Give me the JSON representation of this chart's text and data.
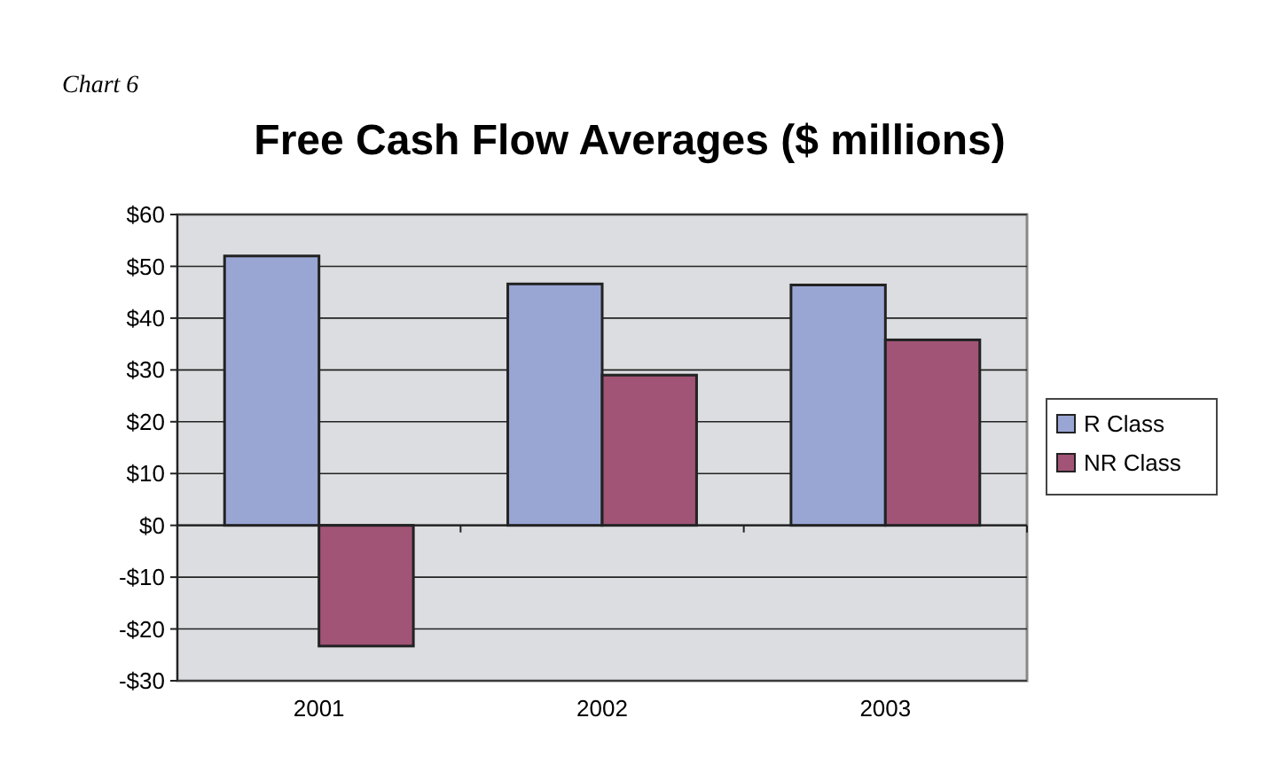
{
  "chart_data": {
    "type": "bar",
    "title": "Free Cash Flow Averages ($ millions)",
    "annotations": [
      "Chart 6"
    ],
    "categories": [
      "2001",
      "2002",
      "2003"
    ],
    "series": [
      {
        "name": "R Class",
        "color": "#99a6d4",
        "values": [
          52.0,
          46.6,
          46.4
        ]
      },
      {
        "name": "NR Class",
        "color": "#a15476",
        "values": [
          -23.3,
          29.0,
          35.8
        ]
      }
    ],
    "ylim": [
      -30,
      60
    ],
    "yticks": [
      {
        "value": -30,
        "label": "-$30"
      },
      {
        "value": -20,
        "label": "-$20"
      },
      {
        "value": -10,
        "label": "-$10"
      },
      {
        "value": 0,
        "label": "$0"
      },
      {
        "value": 10,
        "label": "$10"
      },
      {
        "value": 20,
        "label": "$20"
      },
      {
        "value": 30,
        "label": "$30"
      },
      {
        "value": 40,
        "label": "$40"
      },
      {
        "value": 50,
        "label": "$50"
      },
      {
        "value": 60,
        "label": "$60"
      }
    ],
    "grid": "y",
    "legend": "right"
  }
}
